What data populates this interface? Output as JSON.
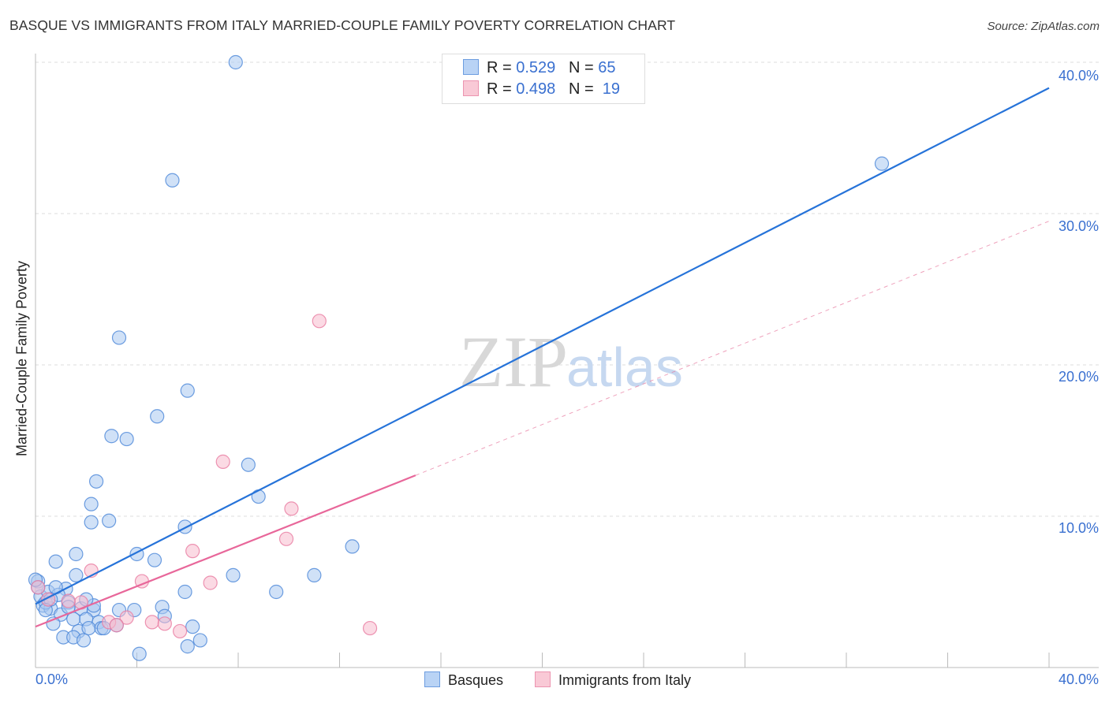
{
  "chart_data": {
    "type": "scatter",
    "title": "BASQUE VS IMMIGRANTS FROM ITALY MARRIED-COUPLE FAMILY POVERTY CORRELATION CHART",
    "source": "Source: ZipAtlas.com",
    "xlabel": "",
    "ylabel": "Married-Couple Family Poverty",
    "xlim": [
      0,
      40
    ],
    "ylim": [
      0,
      40
    ],
    "x_tick_labels": [
      "0.0%",
      "40.0%"
    ],
    "y_tick_labels": [
      {
        "value": 40,
        "label": "40.0%"
      },
      {
        "value": 30,
        "label": "30.0%"
      },
      {
        "value": 20,
        "label": "20.0%"
      },
      {
        "value": 10,
        "label": "10.0%"
      }
    ],
    "grid": true,
    "legend_position": "top-center",
    "stats": [
      {
        "r_label": "R =",
        "r": "0.529",
        "n_label": "N =",
        "n": "65"
      },
      {
        "r_label": "R =",
        "r": "0.498",
        "n_label": "N =",
        "n": "19"
      }
    ],
    "series": [
      {
        "name": "Basques",
        "color": "#4a86d8",
        "fill": "#a9c8f0",
        "trend": {
          "x0": 0,
          "y0": 4.2,
          "x1": 40,
          "y1": 38.3
        },
        "points": [
          [
            7.9,
            40.0
          ],
          [
            5.4,
            32.2
          ],
          [
            33.4,
            33.3
          ],
          [
            3.3,
            21.8
          ],
          [
            6.0,
            18.3
          ],
          [
            4.8,
            16.6
          ],
          [
            3.0,
            15.3
          ],
          [
            3.6,
            15.1
          ],
          [
            8.4,
            13.4
          ],
          [
            2.4,
            12.3
          ],
          [
            8.8,
            11.3
          ],
          [
            2.2,
            10.8
          ],
          [
            2.9,
            9.7
          ],
          [
            2.2,
            9.6
          ],
          [
            5.9,
            9.3
          ],
          [
            12.5,
            8.0
          ],
          [
            1.6,
            7.5
          ],
          [
            4.0,
            7.5
          ],
          [
            4.7,
            7.1
          ],
          [
            0.8,
            7.0
          ],
          [
            1.6,
            6.1
          ],
          [
            7.8,
            6.1
          ],
          [
            11.0,
            6.1
          ],
          [
            5.9,
            5.0
          ],
          [
            9.5,
            5.0
          ],
          [
            0.1,
            5.7
          ],
          [
            0.2,
            4.7
          ],
          [
            0.5,
            5.0
          ],
          [
            1.2,
            5.2
          ],
          [
            0.9,
            4.8
          ],
          [
            0.3,
            4.1
          ],
          [
            0.6,
            3.9
          ],
          [
            1.3,
            4.3
          ],
          [
            1.8,
            3.9
          ],
          [
            2.3,
            3.8
          ],
          [
            3.3,
            3.8
          ],
          [
            3.9,
            3.8
          ],
          [
            5.0,
            4.0
          ],
          [
            5.1,
            3.4
          ],
          [
            1.0,
            3.5
          ],
          [
            1.5,
            3.2
          ],
          [
            2.0,
            3.2
          ],
          [
            2.5,
            3.0
          ],
          [
            0.7,
            2.9
          ],
          [
            1.7,
            2.4
          ],
          [
            2.1,
            2.6
          ],
          [
            2.6,
            2.6
          ],
          [
            2.7,
            2.6
          ],
          [
            6.2,
            2.7
          ],
          [
            1.1,
            2.0
          ],
          [
            1.5,
            2.0
          ],
          [
            1.9,
            1.8
          ],
          [
            4.1,
            0.9
          ],
          [
            6.0,
            1.4
          ],
          [
            6.5,
            1.8
          ],
          [
            0.4,
            4.3
          ],
          [
            0.1,
            5.3
          ],
          [
            2.3,
            4.1
          ],
          [
            3.2,
            2.8
          ],
          [
            0.6,
            4.5
          ],
          [
            1.3,
            4.0
          ],
          [
            2.0,
            4.5
          ],
          [
            0.8,
            5.3
          ],
          [
            0.0,
            5.8
          ],
          [
            0.4,
            3.8
          ]
        ]
      },
      {
        "name": "Immigrants from Italy",
        "color": "#e87ba0",
        "fill": "#f7bccd",
        "trend": {
          "x0": 0,
          "y0": 2.7,
          "x1": 15,
          "y1": 12.7,
          "dash_to_x": 40,
          "dash_to_y": 29.5
        },
        "points": [
          [
            11.2,
            22.9
          ],
          [
            7.4,
            13.6
          ],
          [
            10.1,
            10.5
          ],
          [
            9.9,
            8.5
          ],
          [
            6.2,
            7.7
          ],
          [
            4.2,
            5.7
          ],
          [
            6.9,
            5.6
          ],
          [
            2.2,
            6.4
          ],
          [
            0.1,
            5.3
          ],
          [
            1.8,
            4.3
          ],
          [
            1.3,
            4.4
          ],
          [
            3.6,
            3.3
          ],
          [
            2.9,
            3.0
          ],
          [
            3.2,
            2.8
          ],
          [
            4.6,
            3.0
          ],
          [
            5.1,
            2.9
          ],
          [
            5.7,
            2.4
          ],
          [
            13.2,
            2.6
          ],
          [
            0.5,
            4.5
          ]
        ]
      }
    ],
    "watermark": {
      "zip": "ZIP",
      "atlas": "atlas"
    }
  }
}
